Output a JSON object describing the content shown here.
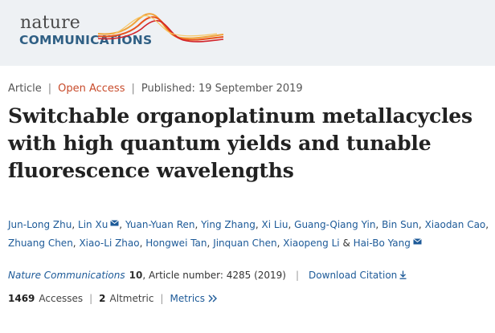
{
  "masthead": {
    "logo_word1": "nature",
    "logo_word2": "COMMUNICATIONS",
    "wave_colors": [
      "#e8531e",
      "#f0a33a",
      "#d2232a"
    ]
  },
  "meta": {
    "type": "Article",
    "access": "Open Access",
    "published": "Published: 19 September 2019"
  },
  "article": {
    "title": "Switchable organoplatinum metallacycles with high quantum yields and tunable fluorescence wavelengths"
  },
  "authors": {
    "list": [
      "Jun-Long Zhu",
      "Lin Xu",
      "Yuan-Yuan Ren",
      "Ying Zhang",
      "Xi Liu",
      "Guang-Qiang Yin",
      "Bin Sun",
      "Xiaodan Cao",
      "Zhuang Chen",
      "Xiao-Li Zhao",
      "Hongwei Tan",
      "Jinquan Chen",
      "Xiaopeng Li",
      "Hai-Bo Yang"
    ],
    "sep_comma": ",",
    "sep_amp": "&",
    "mail_icon": "mail-icon"
  },
  "citation": {
    "journal": "Nature Communications",
    "volume": "10",
    "article_number": ", Article number: 4285 (2019)",
    "download_label": "Download Citation",
    "download_icon": "download-icon"
  },
  "metrics": {
    "accesses_count": "1469",
    "accesses_label": "Accesses",
    "altmetric_count": "2",
    "altmetric_label": "Altmetric",
    "metrics_label": "Metrics",
    "metrics_icon": "double-chevron-right-icon"
  },
  "colors": {
    "link": "#1d5a98",
    "open_access": "#c84b2b",
    "masthead_bg": "#eef1f4"
  }
}
